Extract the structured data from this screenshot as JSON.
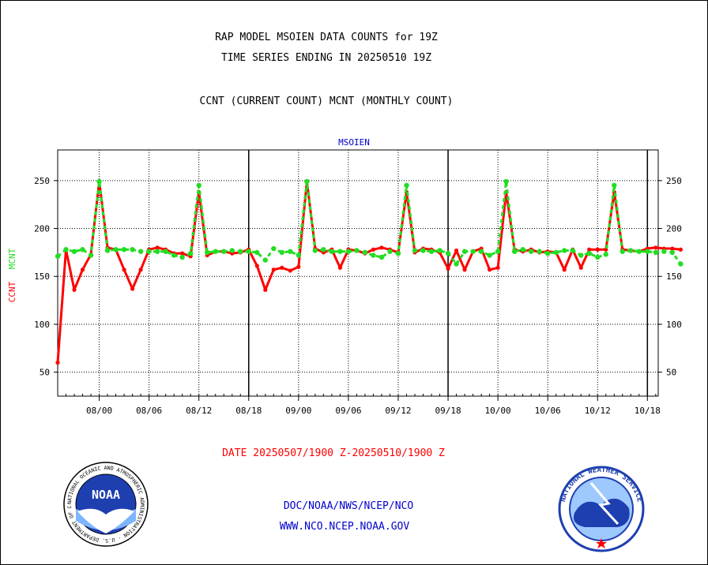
{
  "header": {
    "line1": "RAP MODEL MSOIEN DATA COUNTS for 19Z",
    "line2": "TIME SERIES ENDING IN 20250510 19Z",
    "line3": "CCNT (CURRENT COUNT) MCNT (MONTHLY COUNT)"
  },
  "footer": {
    "date_range": "DATE 20250507/1900 Z-20250510/1900 Z",
    "org": "DOC/NOAA/NWS/NCEP/NCO",
    "url": "WWW.NCO.NCEP.NOAA.GOV"
  },
  "logos": {
    "noaa_text": "NOAA",
    "noaa_ring": "NATIONAL OCEANIC AND ATMOSPHERIC ADMINISTRATION · U.S. DEPARTMENT OF COMMERCE",
    "nws_ring": "NATIONAL WEATHER SERVICE"
  },
  "colors": {
    "ccnt": "#ff0000",
    "mcnt": "#22dd22",
    "text_blue": "#0000cc",
    "text_red": "#ff0000",
    "grid": "#000000"
  },
  "chart_data": {
    "type": "line",
    "title": "MSOIEN",
    "ylabel_ccnt": "CCNT",
    "ylabel_mcnt": "MCNT",
    "xlabel": "",
    "ylim": [
      25,
      282
    ],
    "y_ticks": [
      50,
      100,
      150,
      200,
      250
    ],
    "x_ticks": [
      "08/00",
      "08/06",
      "08/12",
      "08/18",
      "09/00",
      "09/06",
      "09/12",
      "09/18",
      "10/00",
      "10/06",
      "10/12",
      "10/18"
    ],
    "x_tick_hours": [
      5,
      11,
      17,
      23,
      29,
      35,
      41,
      47,
      53,
      59,
      65,
      71
    ],
    "x_day_boundaries_hours": [
      23,
      47,
      71
    ],
    "xlim_hours": [
      0,
      72.3
    ],
    "grid": true,
    "series": [
      {
        "name": "CCNT",
        "color": "#ff0000",
        "values": [
          60,
          178,
          136,
          157,
          173,
          249,
          180,
          178,
          157,
          137,
          157,
          178,
          180,
          178,
          174,
          174,
          171,
          238,
          172,
          176,
          176,
          174,
          175,
          178,
          161,
          136,
          157,
          159,
          156,
          160,
          249,
          179,
          175,
          178,
          159,
          178,
          177,
          174,
          178,
          180,
          178,
          175,
          238,
          175,
          179,
          178,
          175,
          158,
          177,
          157,
          176,
          179,
          157,
          159,
          238,
          178,
          176,
          178,
          175,
          176,
          175,
          157,
          178,
          159,
          178,
          178,
          178,
          238,
          178,
          177,
          176,
          179,
          180,
          179,
          179,
          178
        ]
      },
      {
        "name": "MCNT",
        "color": "#22dd22",
        "values": [
          171,
          178,
          176,
          178,
          172,
          249,
          177,
          178,
          178,
          178,
          176,
          176,
          176,
          176,
          172,
          170,
          174,
          245,
          175,
          176,
          176,
          177,
          176,
          176,
          175,
          167,
          179,
          175,
          176,
          172,
          249,
          177,
          178,
          176,
          176,
          176,
          177,
          175,
          172,
          170,
          176,
          174,
          245,
          177,
          177,
          176,
          177,
          174,
          163,
          176,
          176,
          176,
          172,
          176,
          249,
          176,
          178,
          176,
          176,
          174,
          175,
          177,
          177,
          172,
          174,
          170,
          173,
          245,
          176,
          177,
          176,
          176,
          175,
          176,
          175,
          163
        ]
      }
    ]
  }
}
